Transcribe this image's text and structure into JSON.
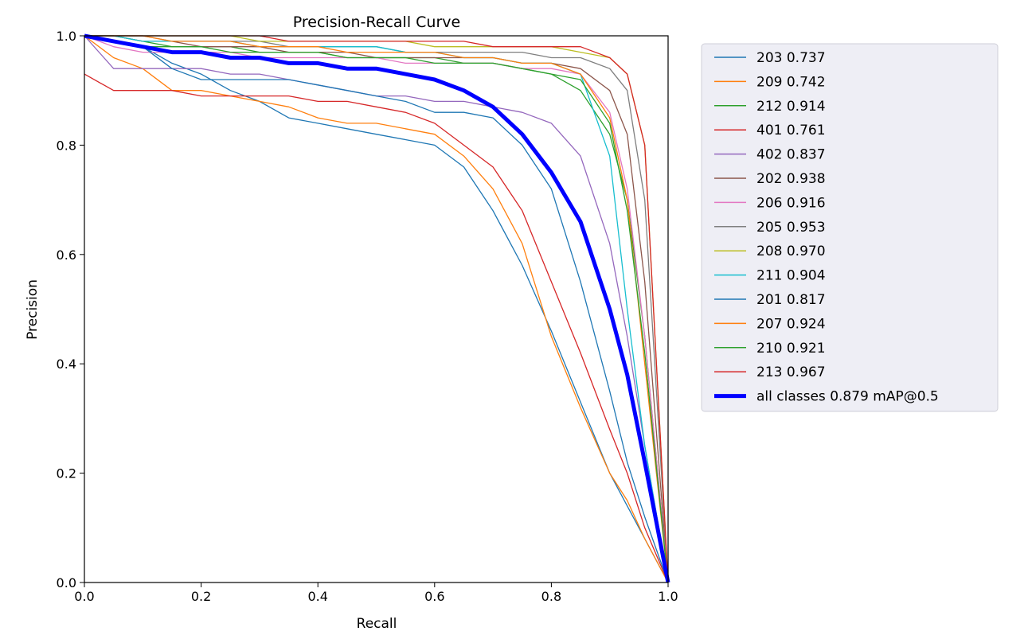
{
  "chart_data": {
    "type": "line",
    "title": "Precision-Recall Curve",
    "xlabel": "Recall",
    "ylabel": "Precision",
    "xlim": [
      0,
      1
    ],
    "ylim": [
      0,
      1
    ],
    "xticks": [
      "0.0",
      "0.2",
      "0.4",
      "0.6",
      "0.8",
      "1.0"
    ],
    "yticks": [
      "0.0",
      "0.2",
      "0.4",
      "0.6",
      "0.8",
      "1.0"
    ],
    "grid": false,
    "legend_placement": "outside-right",
    "series": [
      {
        "name": "203 0.737",
        "color": "#1f77b4",
        "x": [
          0,
          0.05,
          0.1,
          0.15,
          0.2,
          0.25,
          0.3,
          0.35,
          0.4,
          0.45,
          0.5,
          0.55,
          0.6,
          0.65,
          0.7,
          0.75,
          0.8,
          0.85,
          0.9,
          0.93,
          0.96,
          1.0
        ],
        "y": [
          1.0,
          0.99,
          0.98,
          0.95,
          0.93,
          0.9,
          0.88,
          0.85,
          0.84,
          0.83,
          0.82,
          0.81,
          0.8,
          0.76,
          0.68,
          0.58,
          0.46,
          0.33,
          0.2,
          0.14,
          0.08,
          0.0
        ]
      },
      {
        "name": "209 0.742",
        "color": "#ff7f0e",
        "x": [
          0,
          0.05,
          0.1,
          0.15,
          0.2,
          0.25,
          0.3,
          0.35,
          0.4,
          0.45,
          0.5,
          0.55,
          0.6,
          0.65,
          0.7,
          0.75,
          0.8,
          0.85,
          0.9,
          0.93,
          0.96,
          1.0
        ],
        "y": [
          1.0,
          0.96,
          0.94,
          0.9,
          0.9,
          0.89,
          0.88,
          0.87,
          0.85,
          0.84,
          0.84,
          0.83,
          0.82,
          0.78,
          0.72,
          0.62,
          0.45,
          0.32,
          0.2,
          0.15,
          0.08,
          0.0
        ]
      },
      {
        "name": "212 0.914",
        "color": "#2ca02c",
        "x": [
          0,
          0.05,
          0.1,
          0.15,
          0.2,
          0.25,
          0.3,
          0.35,
          0.4,
          0.45,
          0.5,
          0.55,
          0.6,
          0.65,
          0.7,
          0.75,
          0.8,
          0.85,
          0.9,
          0.93,
          0.96,
          1.0
        ],
        "y": [
          1.0,
          1.0,
          0.99,
          0.98,
          0.98,
          0.98,
          0.97,
          0.97,
          0.97,
          0.96,
          0.96,
          0.96,
          0.96,
          0.95,
          0.95,
          0.94,
          0.93,
          0.9,
          0.82,
          0.7,
          0.45,
          0.0
        ]
      },
      {
        "name": "401 0.761",
        "color": "#d62728",
        "x": [
          0,
          0.05,
          0.1,
          0.15,
          0.2,
          0.25,
          0.3,
          0.35,
          0.4,
          0.45,
          0.5,
          0.55,
          0.6,
          0.65,
          0.7,
          0.75,
          0.8,
          0.85,
          0.9,
          0.93,
          0.96,
          1.0
        ],
        "y": [
          0.93,
          0.9,
          0.9,
          0.9,
          0.89,
          0.89,
          0.89,
          0.89,
          0.88,
          0.88,
          0.87,
          0.86,
          0.84,
          0.8,
          0.76,
          0.68,
          0.55,
          0.42,
          0.28,
          0.2,
          0.1,
          0.0
        ]
      },
      {
        "name": "402 0.837",
        "color": "#9467bd",
        "x": [
          0,
          0.05,
          0.1,
          0.15,
          0.2,
          0.25,
          0.3,
          0.35,
          0.4,
          0.45,
          0.5,
          0.55,
          0.6,
          0.65,
          0.7,
          0.75,
          0.8,
          0.85,
          0.9,
          0.93,
          0.96,
          1.0
        ],
        "y": [
          1.0,
          0.94,
          0.94,
          0.94,
          0.94,
          0.93,
          0.93,
          0.92,
          0.91,
          0.9,
          0.89,
          0.89,
          0.88,
          0.88,
          0.87,
          0.86,
          0.84,
          0.78,
          0.62,
          0.45,
          0.25,
          0.0
        ]
      },
      {
        "name": "202 0.938",
        "color": "#8c564b",
        "x": [
          0,
          0.05,
          0.1,
          0.15,
          0.2,
          0.25,
          0.3,
          0.35,
          0.4,
          0.45,
          0.5,
          0.55,
          0.6,
          0.65,
          0.7,
          0.75,
          0.8,
          0.85,
          0.9,
          0.93,
          0.96,
          1.0
        ],
        "y": [
          1.0,
          1.0,
          0.99,
          0.99,
          0.98,
          0.98,
          0.98,
          0.97,
          0.97,
          0.97,
          0.96,
          0.96,
          0.96,
          0.96,
          0.96,
          0.95,
          0.95,
          0.94,
          0.9,
          0.82,
          0.55,
          0.0
        ]
      },
      {
        "name": "206 0.916",
        "color": "#e377c2",
        "x": [
          0,
          0.05,
          0.1,
          0.15,
          0.2,
          0.25,
          0.3,
          0.35,
          0.4,
          0.45,
          0.5,
          0.55,
          0.6,
          0.65,
          0.7,
          0.75,
          0.8,
          0.85,
          0.9,
          0.93,
          0.96,
          1.0
        ],
        "y": [
          1.0,
          0.98,
          0.97,
          0.97,
          0.97,
          0.97,
          0.96,
          0.96,
          0.96,
          0.96,
          0.96,
          0.95,
          0.95,
          0.95,
          0.95,
          0.94,
          0.94,
          0.93,
          0.86,
          0.72,
          0.45,
          0.0
        ]
      },
      {
        "name": "205 0.953",
        "color": "#7f7f7f",
        "x": [
          0,
          0.05,
          0.1,
          0.15,
          0.2,
          0.25,
          0.3,
          0.35,
          0.4,
          0.45,
          0.5,
          0.55,
          0.6,
          0.65,
          0.7,
          0.75,
          0.8,
          0.85,
          0.9,
          0.93,
          0.96,
          1.0
        ],
        "y": [
          1.0,
          1.0,
          1.0,
          0.99,
          0.99,
          0.99,
          0.99,
          0.98,
          0.98,
          0.98,
          0.98,
          0.97,
          0.97,
          0.97,
          0.97,
          0.97,
          0.96,
          0.96,
          0.94,
          0.9,
          0.7,
          0.0
        ]
      },
      {
        "name": "208 0.970",
        "color": "#bcbd22",
        "x": [
          0,
          0.05,
          0.1,
          0.15,
          0.2,
          0.25,
          0.3,
          0.35,
          0.4,
          0.45,
          0.5,
          0.55,
          0.6,
          0.65,
          0.7,
          0.75,
          0.8,
          0.85,
          0.9,
          0.93,
          0.96,
          1.0
        ],
        "y": [
          1.0,
          1.0,
          1.0,
          1.0,
          1.0,
          1.0,
          0.99,
          0.99,
          0.99,
          0.99,
          0.99,
          0.99,
          0.98,
          0.98,
          0.98,
          0.98,
          0.98,
          0.97,
          0.96,
          0.93,
          0.8,
          0.0
        ]
      },
      {
        "name": "211 0.904",
        "color": "#17becf",
        "x": [
          0,
          0.05,
          0.1,
          0.15,
          0.2,
          0.25,
          0.3,
          0.35,
          0.4,
          0.45,
          0.5,
          0.55,
          0.6,
          0.65,
          0.7,
          0.75,
          0.8,
          0.85,
          0.9,
          0.93,
          0.96,
          1.0
        ],
        "y": [
          1.0,
          1.0,
          0.99,
          0.99,
          0.99,
          0.99,
          0.98,
          0.98,
          0.98,
          0.98,
          0.98,
          0.97,
          0.97,
          0.96,
          0.96,
          0.95,
          0.95,
          0.93,
          0.78,
          0.5,
          0.25,
          0.0
        ]
      },
      {
        "name": "201 0.817",
        "color": "#1f77b4",
        "x": [
          0,
          0.05,
          0.1,
          0.15,
          0.2,
          0.25,
          0.3,
          0.35,
          0.4,
          0.45,
          0.5,
          0.55,
          0.6,
          0.65,
          0.7,
          0.75,
          0.8,
          0.85,
          0.9,
          0.93,
          0.96,
          1.0
        ],
        "y": [
          1.0,
          0.99,
          0.98,
          0.94,
          0.92,
          0.92,
          0.92,
          0.92,
          0.91,
          0.9,
          0.89,
          0.88,
          0.86,
          0.86,
          0.85,
          0.8,
          0.72,
          0.55,
          0.35,
          0.22,
          0.12,
          0.0
        ]
      },
      {
        "name": "207 0.924",
        "color": "#ff7f0e",
        "x": [
          0,
          0.05,
          0.1,
          0.15,
          0.2,
          0.25,
          0.3,
          0.35,
          0.4,
          0.45,
          0.5,
          0.55,
          0.6,
          0.65,
          0.7,
          0.75,
          0.8,
          0.85,
          0.9,
          0.93,
          0.96,
          1.0
        ],
        "y": [
          1.0,
          1.0,
          1.0,
          0.99,
          0.99,
          0.99,
          0.98,
          0.98,
          0.98,
          0.97,
          0.97,
          0.97,
          0.97,
          0.96,
          0.96,
          0.95,
          0.95,
          0.93,
          0.85,
          0.7,
          0.4,
          0.0
        ]
      },
      {
        "name": "210 0.921",
        "color": "#2ca02c",
        "x": [
          0,
          0.05,
          0.1,
          0.15,
          0.2,
          0.25,
          0.3,
          0.35,
          0.4,
          0.45,
          0.5,
          0.55,
          0.6,
          0.65,
          0.7,
          0.75,
          0.8,
          0.85,
          0.9,
          0.93,
          0.96,
          1.0
        ],
        "y": [
          1.0,
          0.99,
          0.98,
          0.98,
          0.98,
          0.97,
          0.97,
          0.97,
          0.97,
          0.96,
          0.96,
          0.96,
          0.95,
          0.95,
          0.95,
          0.94,
          0.93,
          0.92,
          0.84,
          0.68,
          0.42,
          0.0
        ]
      },
      {
        "name": "213 0.967",
        "color": "#d62728",
        "x": [
          0,
          0.05,
          0.1,
          0.15,
          0.2,
          0.25,
          0.3,
          0.35,
          0.4,
          0.45,
          0.5,
          0.55,
          0.6,
          0.65,
          0.7,
          0.75,
          0.8,
          0.85,
          0.9,
          0.93,
          0.96,
          1.0
        ],
        "y": [
          1.0,
          1.0,
          1.0,
          1.0,
          1.0,
          1.0,
          1.0,
          0.99,
          0.99,
          0.99,
          0.99,
          0.99,
          0.99,
          0.99,
          0.98,
          0.98,
          0.98,
          0.98,
          0.96,
          0.93,
          0.8,
          0.0
        ]
      },
      {
        "name": "all classes 0.879 mAP@0.5",
        "color": "#0000ff",
        "bold": true,
        "x": [
          0,
          0.05,
          0.1,
          0.15,
          0.2,
          0.25,
          0.3,
          0.35,
          0.4,
          0.45,
          0.5,
          0.55,
          0.6,
          0.65,
          0.7,
          0.75,
          0.8,
          0.85,
          0.9,
          0.93,
          0.96,
          1.0
        ],
        "y": [
          1.0,
          0.99,
          0.98,
          0.97,
          0.97,
          0.96,
          0.96,
          0.95,
          0.95,
          0.94,
          0.94,
          0.93,
          0.92,
          0.9,
          0.87,
          0.82,
          0.75,
          0.66,
          0.5,
          0.38,
          0.22,
          0.0
        ]
      }
    ]
  }
}
